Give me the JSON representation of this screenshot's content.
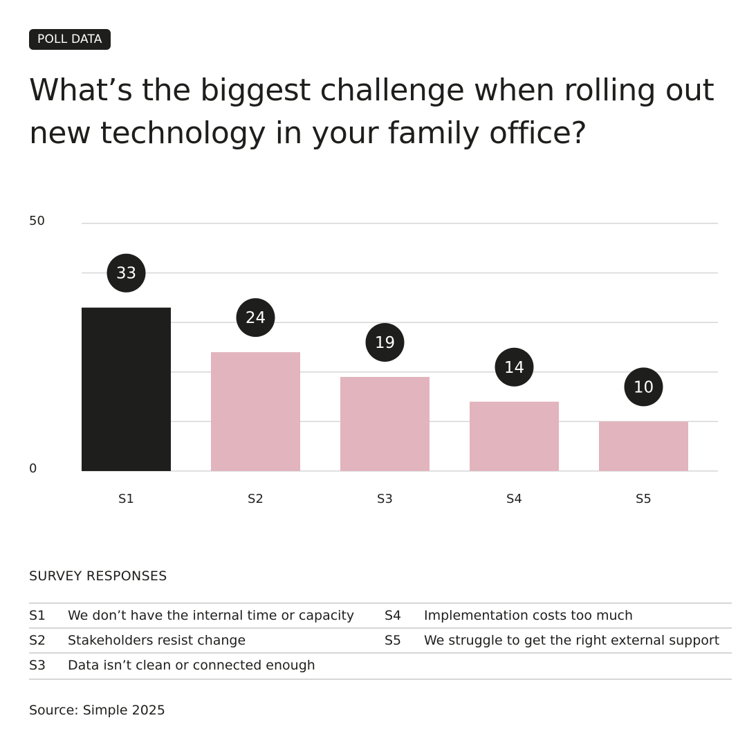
{
  "badge": "POLL DATA",
  "title": "What’s the biggest challenge when rolling out new technology in your family office?",
  "colors": {
    "highlight": "#1e1e1c",
    "bar": "#e2b4bd",
    "grid": "#d6d6d6",
    "label_bubble": "#1e1e1c"
  },
  "chart_data": {
    "type": "bar",
    "categories": [
      "S1",
      "S2",
      "S3",
      "S4",
      "S5"
    ],
    "values": [
      33,
      24,
      19,
      14,
      10
    ],
    "highlighted_category": "S1",
    "ylim": [
      0,
      50
    ],
    "ytick_labels": [
      "0",
      "50"
    ],
    "gridlines": [
      0,
      10,
      20,
      30,
      40,
      50
    ],
    "grid": true,
    "data_labels": [
      "33",
      "24",
      "19",
      "14",
      "10"
    ]
  },
  "legend": {
    "heading": "SURVEY RESPONSES",
    "items": [
      {
        "code": "S1",
        "text": "We don’t have the internal time or capacity"
      },
      {
        "code": "S2",
        "text": "Stakeholders resist change"
      },
      {
        "code": "S3",
        "text": "Data isn’t clean or connected enough"
      },
      {
        "code": "S4",
        "text": "Implementation costs too much"
      },
      {
        "code": "S5",
        "text": "We struggle to get the right external support"
      }
    ]
  },
  "source": "Source: Simple 2025"
}
